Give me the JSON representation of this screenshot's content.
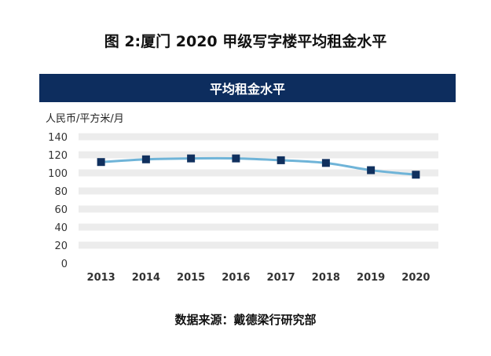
{
  "figure": {
    "title": "图 2:厦门 2020 甲级写字楼平均租金水平",
    "source": "数据来源：戴德梁行研究部"
  },
  "chart_data": {
    "type": "line",
    "title": "平均租金水平",
    "ylabel": "人民币/平方米/月",
    "xlabel": "",
    "categories": [
      "2013",
      "2014",
      "2015",
      "2016",
      "2017",
      "2018",
      "2019",
      "2020"
    ],
    "series": [
      {
        "values": [
          112,
          115,
          116,
          116,
          114,
          111,
          103,
          98
        ]
      }
    ],
    "ylim": [
      0,
      140
    ],
    "yticks": [
      0,
      20,
      40,
      60,
      80,
      100,
      120,
      140
    ],
    "grid": true,
    "legend": "none",
    "colors": {
      "line": "#6fb4d8",
      "marker": "#10305e",
      "grid": "#ececec",
      "banner": "#0d2d5e"
    }
  }
}
